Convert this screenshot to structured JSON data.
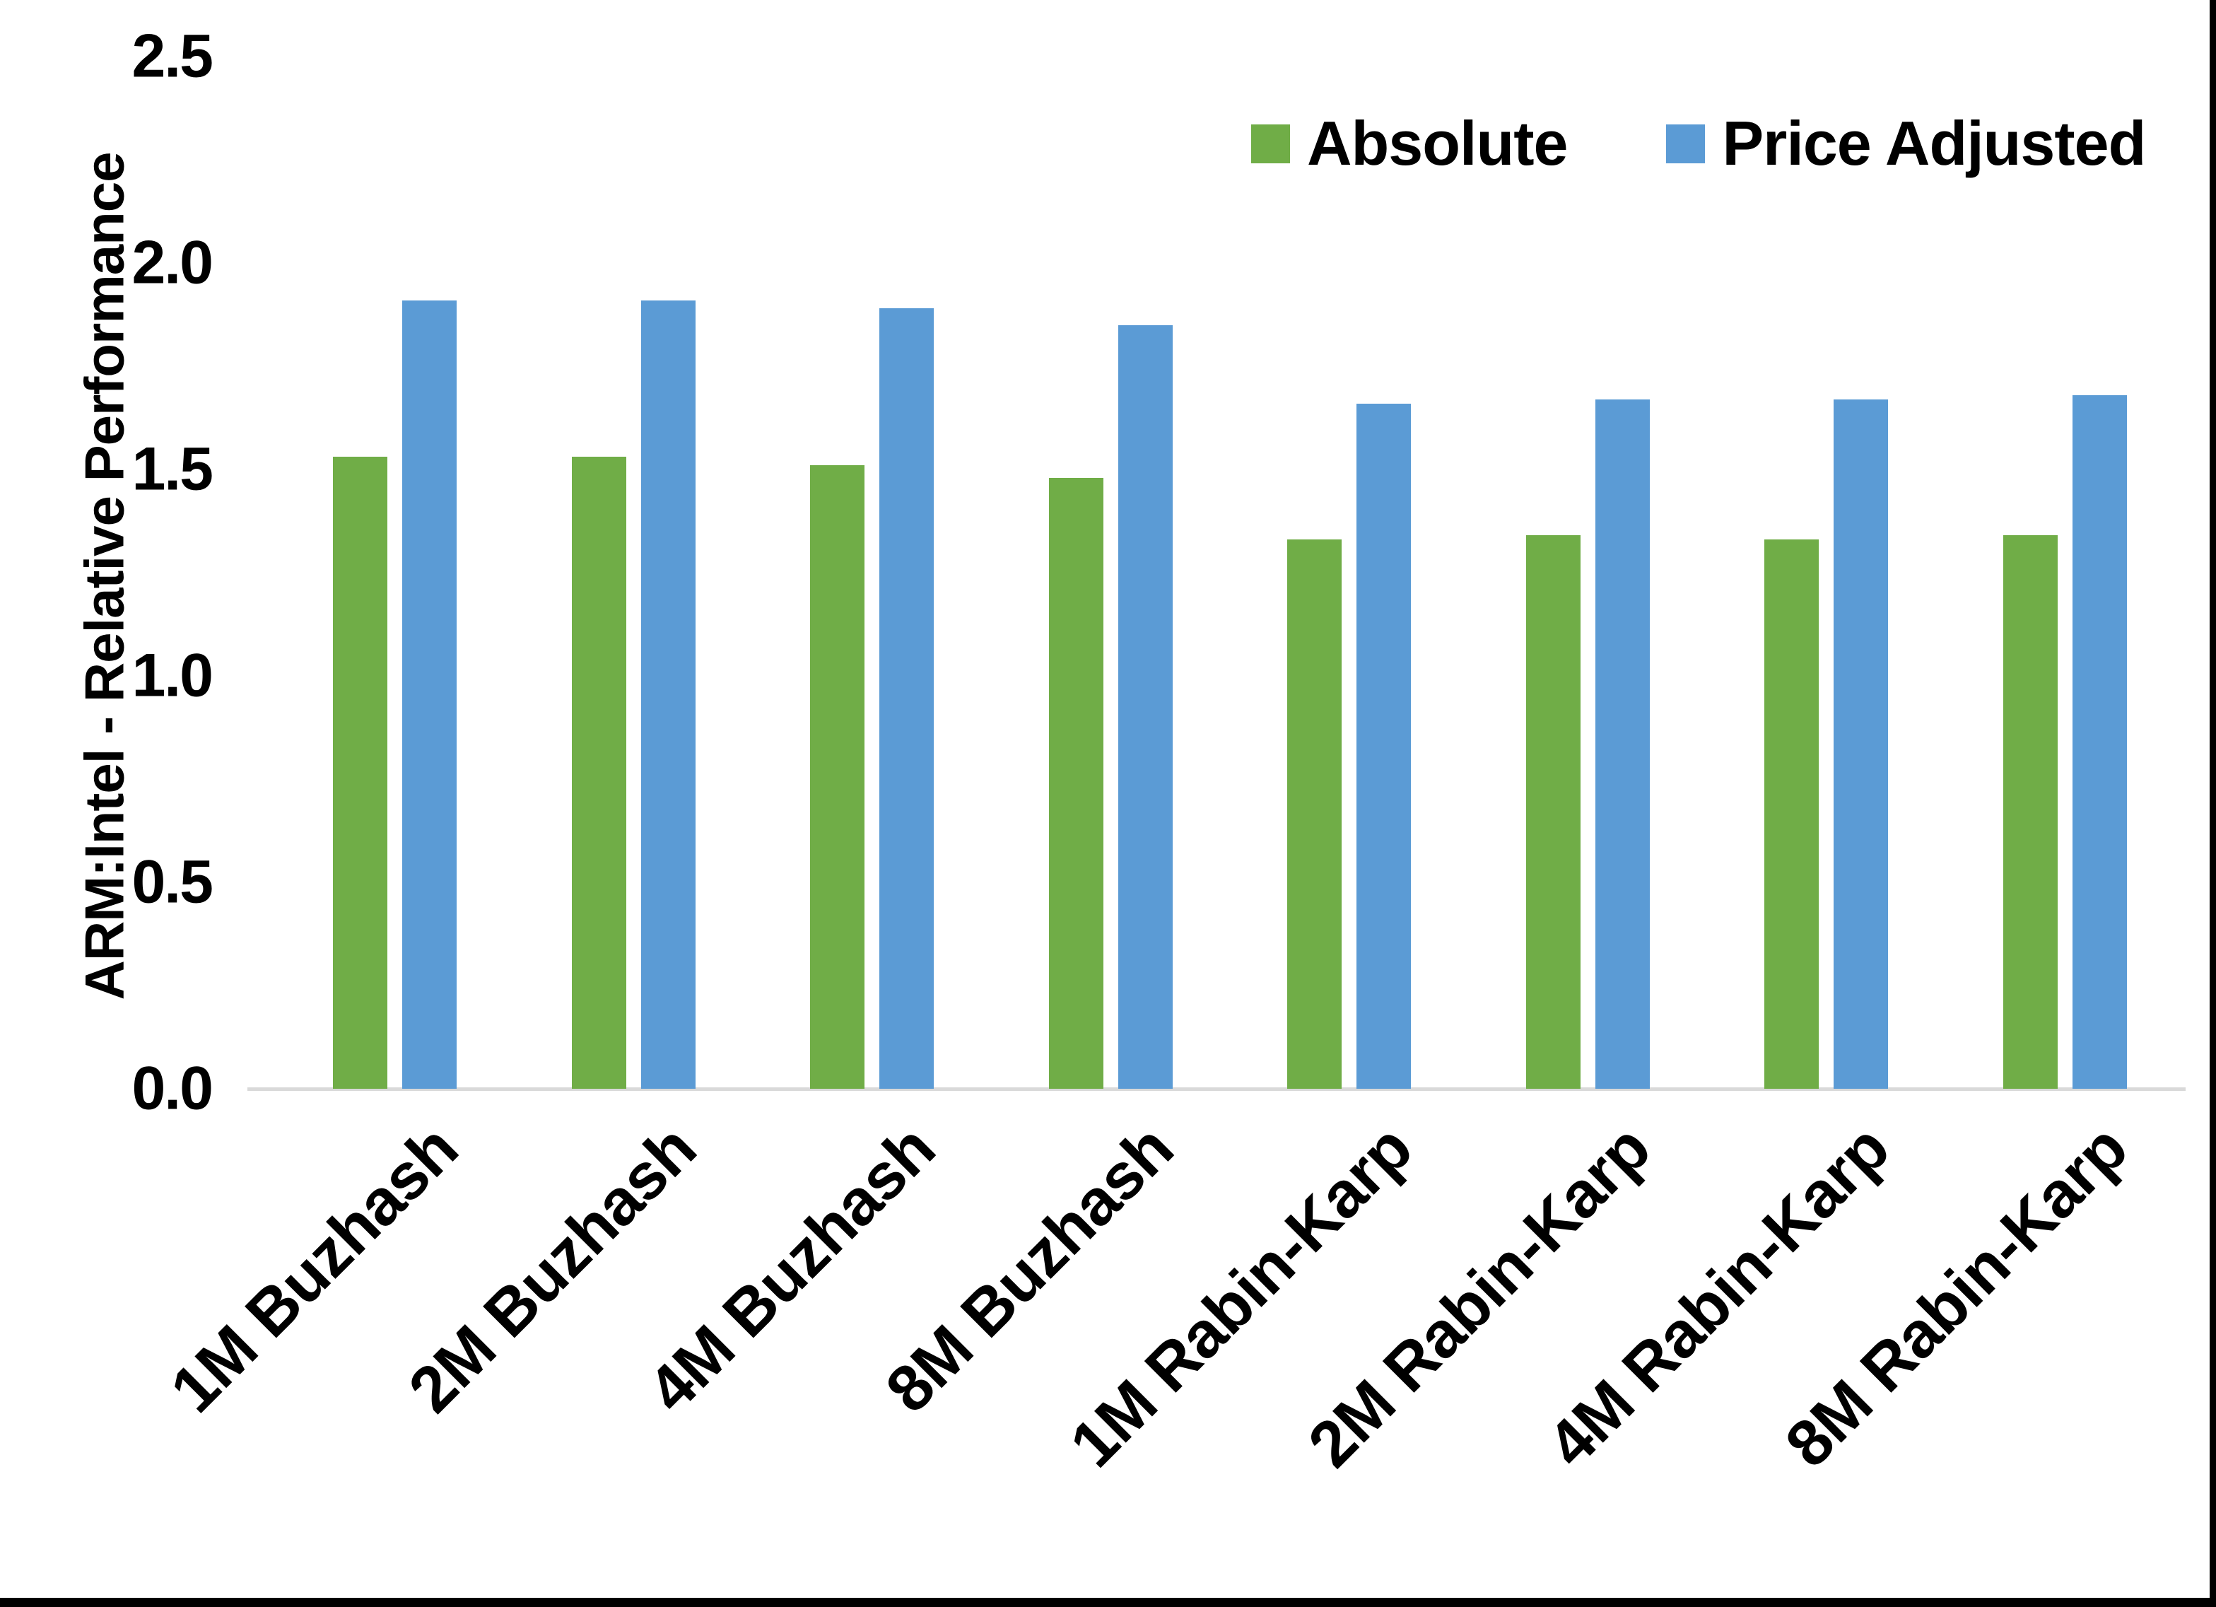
{
  "chart_data": {
    "type": "bar",
    "title": "",
    "categories": [
      "1M Buzhash",
      "2M Buzhash",
      "4M Buzhash",
      "8M Buzhash",
      "1M Rabin-Karp",
      "2M Rabin-Karp",
      "4M Rabin-Karp",
      "8M Rabin-Karp"
    ],
    "series": [
      {
        "name": "Absolute",
        "color": "#70AD47",
        "values": [
          1.53,
          1.53,
          1.51,
          1.48,
          1.33,
          1.34,
          1.33,
          1.34
        ]
      },
      {
        "name": "Price Adjusted",
        "color": "#5B9BD5",
        "values": [
          1.91,
          1.91,
          1.89,
          1.85,
          1.66,
          1.67,
          1.67,
          1.68
        ]
      }
    ],
    "xlabel": "",
    "ylabel": "ARM:Intel - Relative Performance",
    "ylim": [
      0,
      2.5
    ],
    "yticks": [
      "0.0",
      "0.5",
      "1.0",
      "1.5",
      "2.0",
      "2.5"
    ],
    "grid": "none",
    "legend_position": "top-right",
    "axis_line_color": "#D9D9D9",
    "text_color": "#000000",
    "background": "#FFFFFF",
    "frame_border_color": "#000000"
  }
}
